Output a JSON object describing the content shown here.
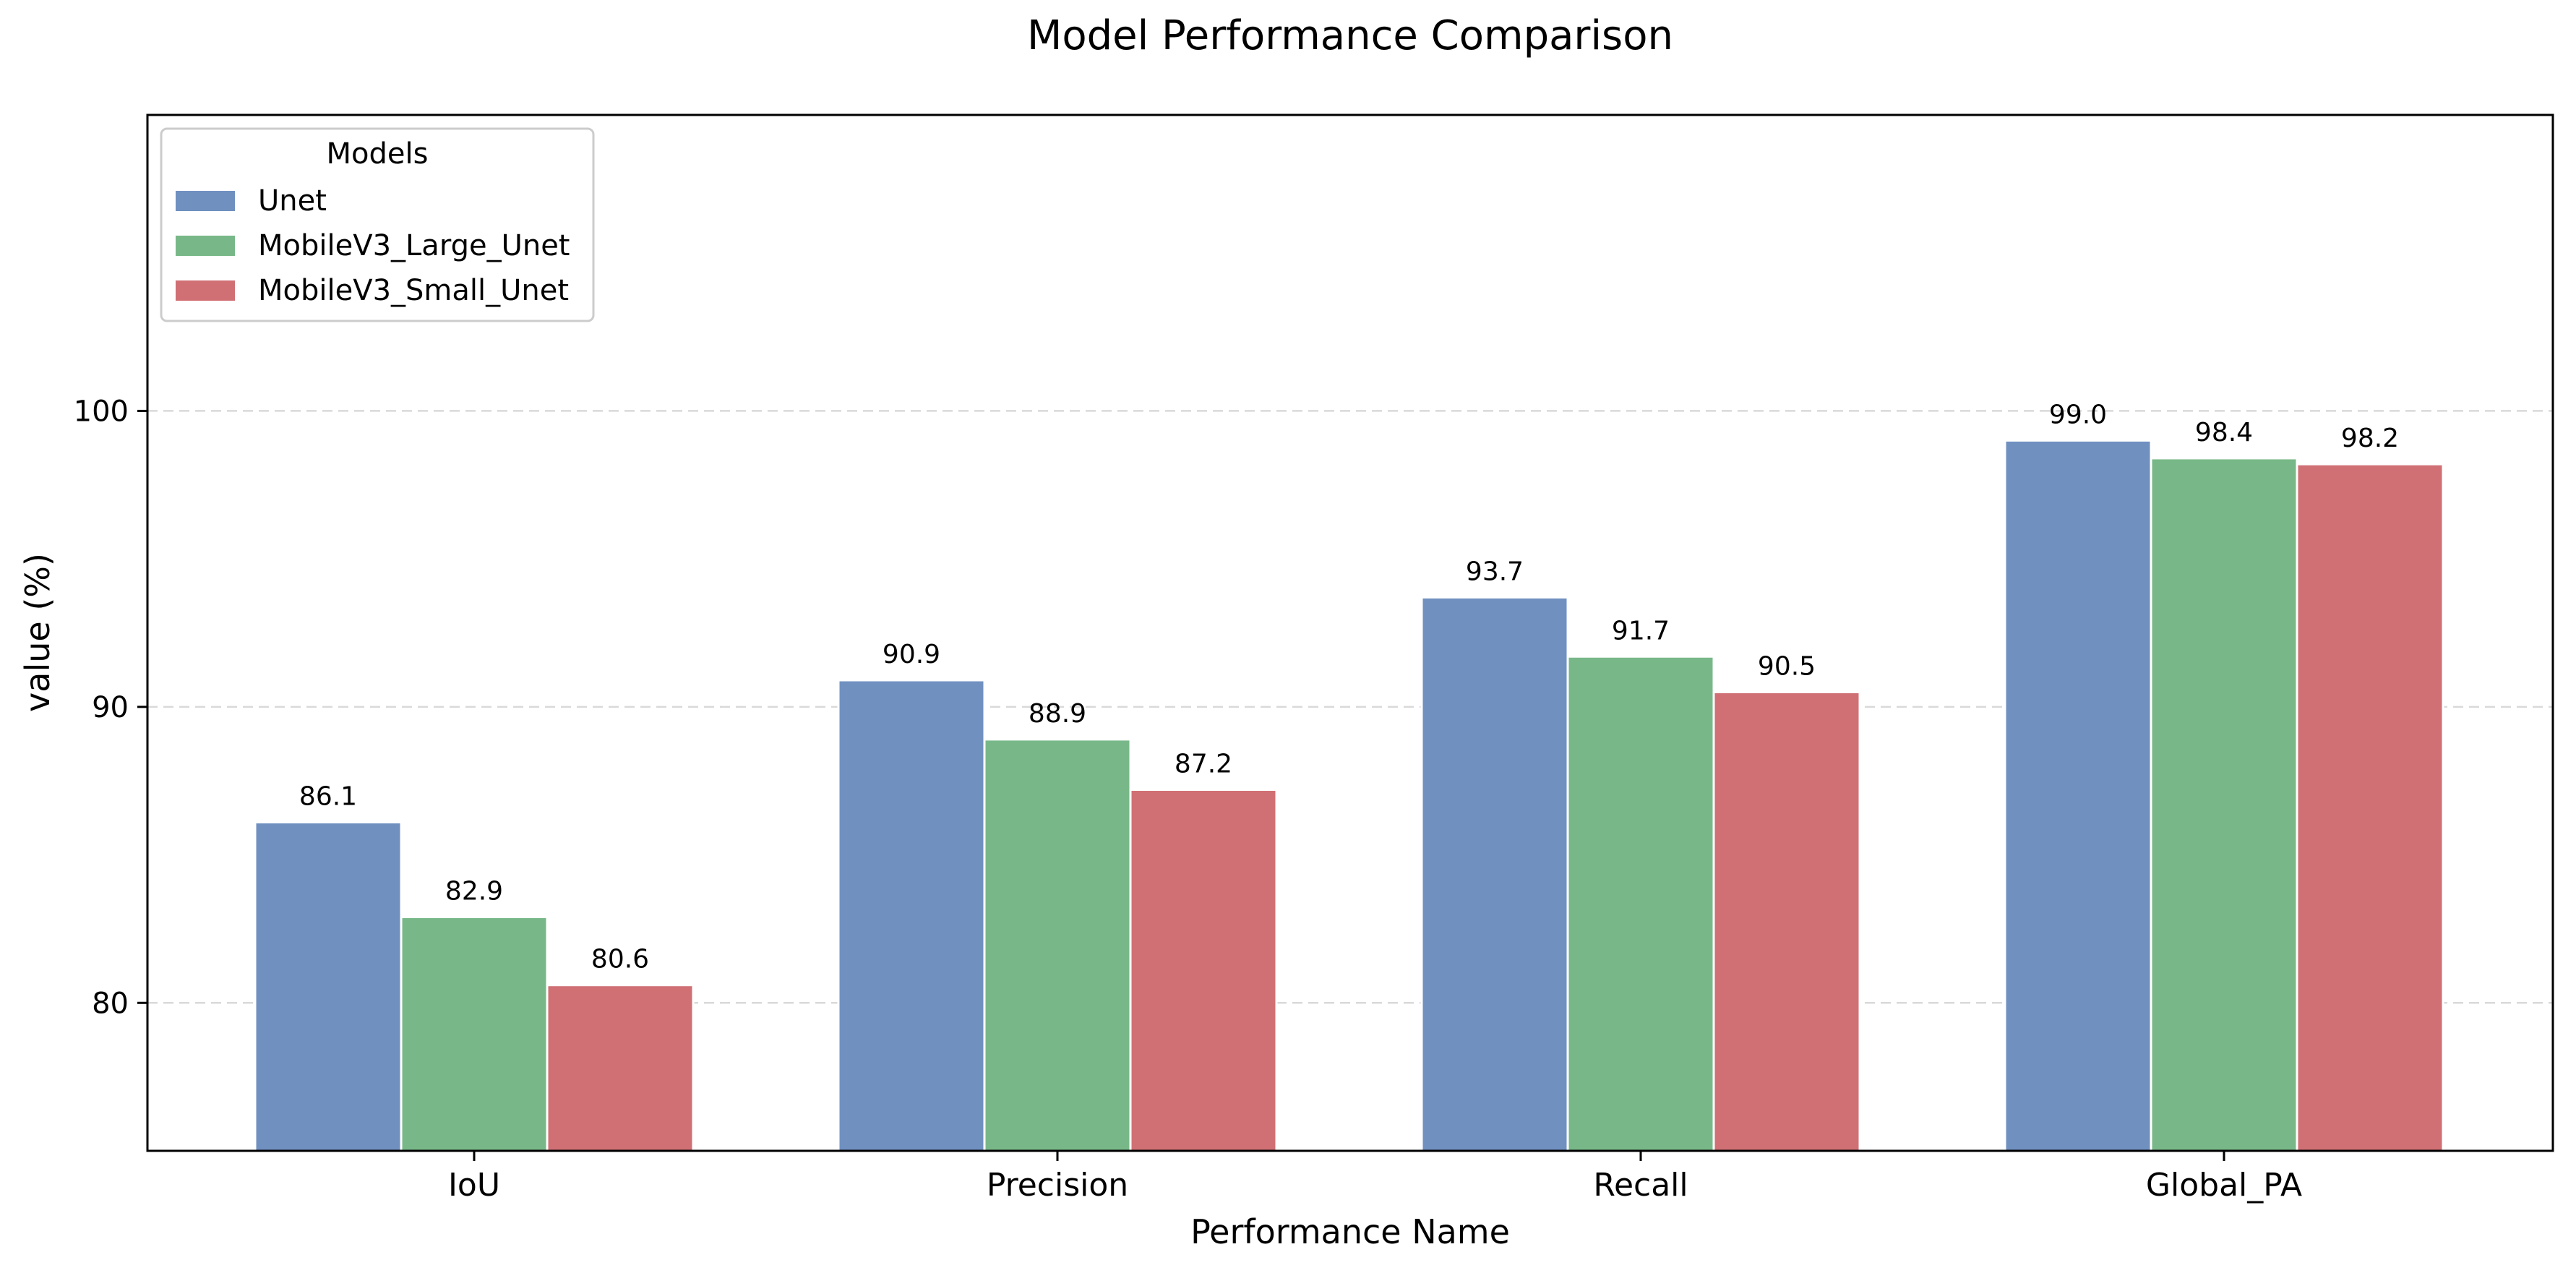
{
  "chart_data": {
    "type": "bar",
    "title": "Model Performance Comparison",
    "xlabel": "Performance Name",
    "ylabel": "value (%)",
    "categories": [
      "IoU",
      "Precision",
      "Recall",
      "Global_PA"
    ],
    "ylim": [
      75,
      110
    ],
    "yticks": [
      80,
      90,
      100
    ],
    "ytick_labels": [
      "80",
      "90",
      "100"
    ],
    "grid": "y-dashed",
    "legend": {
      "title": "Models",
      "position": "top-left"
    },
    "series": [
      {
        "name": "Unet",
        "color": "#7090c0",
        "values": [
          86.1,
          90.9,
          93.7,
          99.0
        ],
        "labels": [
          "86.1",
          "90.9",
          "93.7",
          "99.0"
        ]
      },
      {
        "name": "MobileV3_Large_Unet",
        "color": "#78b888",
        "values": [
          82.9,
          88.9,
          91.7,
          98.4
        ],
        "labels": [
          "82.9",
          "88.9",
          "91.7",
          "98.4"
        ]
      },
      {
        "name": "MobileV3_Small_Unet",
        "color": "#d07074",
        "values": [
          80.6,
          87.2,
          90.5,
          98.2
        ],
        "labels": [
          "80.6",
          "87.2",
          "90.5",
          "98.2"
        ]
      }
    ]
  }
}
